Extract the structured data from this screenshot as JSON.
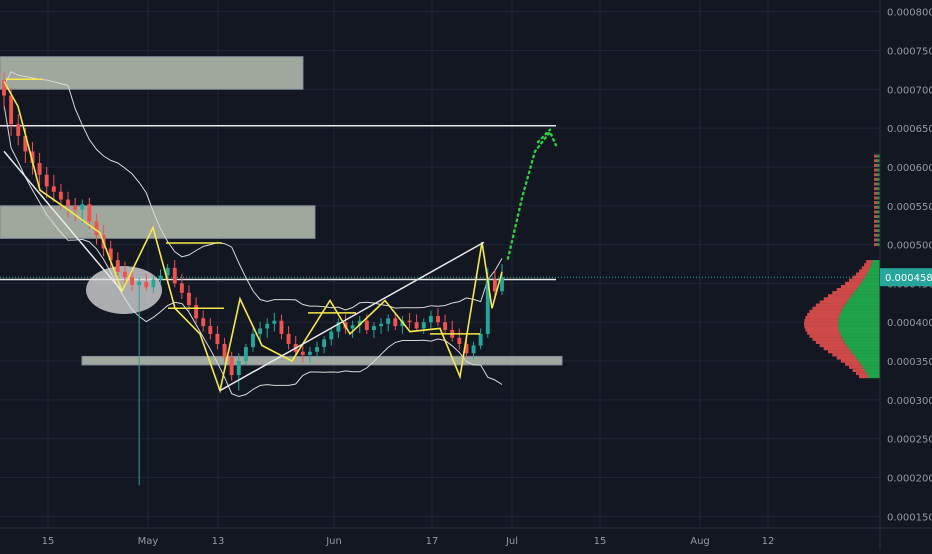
{
  "chart_data": {
    "type": "candlestick",
    "title": "",
    "ylim": [
      0.000135,
      0.000815
    ],
    "y_ticks": [
      "0.000150",
      "0.000200",
      "0.000250",
      "0.000300",
      "0.000350",
      "0.000400",
      "0.000450",
      "0.000500",
      "0.000550",
      "0.000600",
      "0.000650",
      "0.000700",
      "0.000750",
      "0.000800"
    ],
    "x_ticks": [
      "15",
      "May",
      "13",
      "Jun",
      "17",
      "Jul",
      "15",
      "Aug",
      "12"
    ],
    "last_price": "0.000458",
    "colors": {
      "background": "#131722",
      "grid": "#1f2433",
      "up": "#26a69a",
      "down": "#ef5350",
      "wave": "#f5e94b",
      "band": "#d8d8d8",
      "projection": "#2ecc40",
      "zone": "#c8cfc0",
      "price_tag": "#26a69a"
    },
    "resistance_levels": [
      0.000653,
      0.000455
    ],
    "supply_zones": [
      {
        "low": 0.0007,
        "high": 0.000742
      },
      {
        "low": 0.000508,
        "high": 0.00055
      },
      {
        "low": 0.000345,
        "high": 0.000356
      }
    ],
    "ohlc": [
      [
        0.000712,
        0.000722,
        0.000675,
        0.000692
      ],
      [
        0.000692,
        0.000702,
        0.00064,
        0.000655
      ],
      [
        0.000655,
        0.000668,
        0.000628,
        0.00064
      ],
      [
        0.00064,
        0.00065,
        0.000605,
        0.00062
      ],
      [
        0.00062,
        0.000632,
        0.00059,
        0.000605
      ],
      [
        0.000605,
        0.000618,
        0.000575,
        0.00059
      ],
      [
        0.00059,
        0.0006,
        0.00056,
        0.000575
      ],
      [
        0.000575,
        0.00059,
        0.000555,
        0.000568
      ],
      [
        0.000568,
        0.000578,
        0.000545,
        0.000558
      ],
      [
        0.000558,
        0.000568,
        0.000535,
        0.00055
      ],
      [
        0.00055,
        0.00056,
        0.00053,
        0.000545
      ],
      [
        0.000545,
        0.000558,
        0.000528,
        0.000552
      ],
      [
        0.000552,
        0.00056,
        0.00052,
        0.00053
      ],
      [
        0.00053,
        0.00054,
        0.0005,
        0.000512
      ],
      [
        0.000512,
        0.000525,
        0.000485,
        0.000495
      ],
      [
        0.000495,
        0.000505,
        0.00047,
        0.00048
      ],
      [
        0.00048,
        0.00049,
        0.00046,
        0.000465
      ],
      [
        0.000465,
        0.000478,
        0.00045,
        0.000458
      ],
      [
        0.000458,
        0.000465,
        0.00044,
        0.000448
      ],
      [
        0.000448,
        0.000458,
        0.00019,
        0.000452
      ],
      [
        0.000452,
        0.000462,
        0.00044,
        0.000445
      ],
      [
        0.000445,
        0.00046,
        0.000438,
        0.000455
      ],
      [
        0.000455,
        0.000468,
        0.000448,
        0.00046
      ],
      [
        0.00046,
        0.000475,
        0.00045,
        0.00047
      ],
      [
        0.00047,
        0.00048,
        0.000445,
        0.00045
      ],
      [
        0.00045,
        0.000462,
        0.00043,
        0.000438
      ],
      [
        0.000438,
        0.000448,
        0.000415,
        0.000422
      ],
      [
        0.000422,
        0.000432,
        0.000398,
        0.000405
      ],
      [
        0.000405,
        0.000415,
        0.000388,
        0.000395
      ],
      [
        0.000395,
        0.000405,
        0.000378,
        0.000385
      ],
      [
        0.000385,
        0.000395,
        0.000365,
        0.000372
      ],
      [
        0.000372,
        0.00038,
        0.000348,
        0.000355
      ],
      [
        0.000355,
        0.000362,
        0.000325,
        0.000332
      ],
      [
        0.000332,
        0.00036,
        0.000312,
        0.00035
      ],
      [
        0.00035,
        0.000372,
        0.000345,
        0.000368
      ],
      [
        0.000368,
        0.000392,
        0.000362,
        0.000385
      ],
      [
        0.000385,
        0.0004,
        0.000375,
        0.000392
      ],
      [
        0.000392,
        0.000405,
        0.00038,
        0.000398
      ],
      [
        0.000398,
        0.000412,
        0.000388,
        0.000402
      ],
      [
        0.000402,
        0.00041,
        0.000378,
        0.000385
      ],
      [
        0.000385,
        0.000395,
        0.000365,
        0.000372
      ],
      [
        0.000372,
        0.000382,
        0.000355,
        0.000362
      ],
      [
        0.000362,
        0.000372,
        0.000348,
        0.000358
      ],
      [
        0.000358,
        0.000368,
        0.000348,
        0.000362
      ],
      [
        0.000362,
        0.000375,
        0.000355,
        0.000368
      ],
      [
        0.000368,
        0.000382,
        0.00036,
        0.000378
      ],
      [
        0.000378,
        0.000392,
        0.00037,
        0.000388
      ],
      [
        0.000388,
        0.000405,
        0.00038,
        0.0004
      ],
      [
        0.0004,
        0.00041,
        0.000385,
        0.000392
      ],
      [
        0.000392,
        0.000402,
        0.00038,
        0.000396
      ],
      [
        0.000396,
        0.000408,
        0.000386,
        0.000402
      ],
      [
        0.000402,
        0.00041,
        0.000385,
        0.00039
      ],
      [
        0.00039,
        0.0004,
        0.00038,
        0.000395
      ],
      [
        0.000395,
        0.000405,
        0.000385,
        0.000398
      ],
      [
        0.000398,
        0.00041,
        0.000388,
        0.000405
      ],
      [
        0.000405,
        0.000412,
        0.00039,
        0.000395
      ],
      [
        0.000395,
        0.000408,
        0.000385,
        0.000402
      ],
      [
        0.000402,
        0.000412,
        0.000392,
        0.0004
      ],
      [
        0.0004,
        0.00041,
        0.000388,
        0.000392
      ],
      [
        0.000392,
        0.000405,
        0.000385,
        0.0004
      ],
      [
        0.0004,
        0.000415,
        0.000392,
        0.000408
      ],
      [
        0.000408,
        0.000418,
        0.000395,
        0.0004
      ],
      [
        0.0004,
        0.00041,
        0.000385,
        0.00039
      ],
      [
        0.00039,
        0.000402,
        0.000375,
        0.00038
      ],
      [
        0.00038,
        0.000392,
        0.000365,
        0.000372
      ],
      [
        0.000372,
        0.000382,
        0.000355,
        0.00036
      ],
      [
        0.00036,
        0.000375,
        0.000352,
        0.00037
      ],
      [
        0.00037,
        0.000392,
        0.000365,
        0.000385
      ],
      [
        0.000385,
        0.00047,
        0.00038,
        0.000455
      ],
      [
        0.000455,
        0.000468,
        0.00043,
        0.00044
      ],
      [
        0.00044,
        0.000475,
        0.000435,
        0.000458
      ]
    ]
  }
}
